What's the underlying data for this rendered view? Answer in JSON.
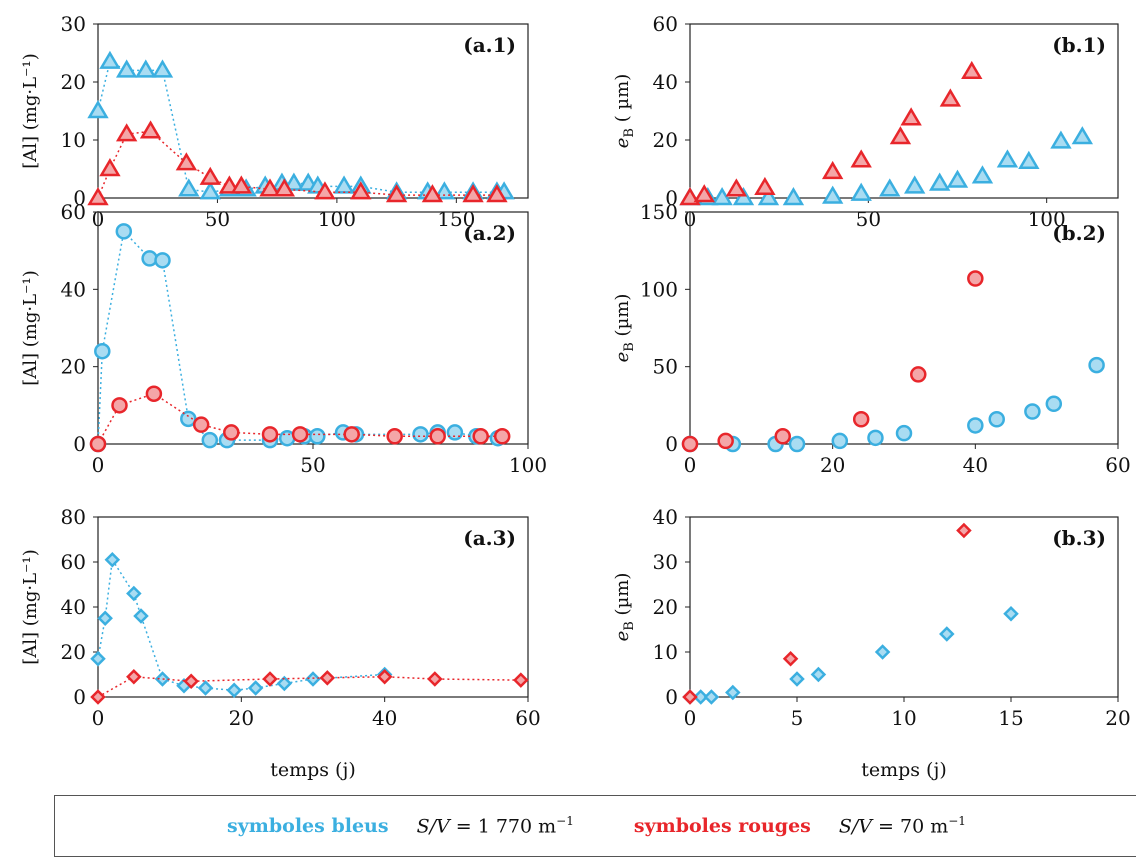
{
  "colors": {
    "blue": "#3bafe0",
    "blue_fill": "#a9dcf2",
    "red": "#e8262b",
    "red_fill": "#f4a6a8"
  },
  "xlabel": "temps (j)",
  "legend": {
    "blue_label": "symboles bleus",
    "blue_sv_prefix": "S/V",
    "blue_sv_value": "= 1 770 m",
    "blue_sv_exp": "−1",
    "red_label": "symboles rouges",
    "red_sv_prefix": "S/V",
    "red_sv_value": "= 70 m",
    "red_sv_exp": "−1"
  },
  "chart_data": [
    {
      "id": "a1",
      "type": "line",
      "marker": "triangle",
      "panel_label": "(a.1)",
      "ylabel": "[Al] (mg·L⁻¹)",
      "xlim": [
        0,
        180
      ],
      "ylim": [
        0,
        30
      ],
      "xticks": [
        0,
        50,
        100,
        150
      ],
      "yticks": [
        0,
        10,
        20,
        30
      ],
      "series": [
        {
          "color": "blue",
          "x": [
            0,
            5,
            12,
            20,
            27,
            38,
            47,
            55,
            62,
            70,
            77,
            82,
            88,
            92,
            103,
            110,
            125,
            138,
            145,
            157,
            167,
            170
          ],
          "y": [
            15,
            23.5,
            22,
            22,
            22,
            1.5,
            1,
            1.5,
            1.5,
            2,
            2.5,
            2.5,
            2.5,
            2,
            2,
            2,
            1,
            1,
            1,
            1,
            1,
            1
          ],
          "connected": true
        },
        {
          "color": "red",
          "x": [
            0,
            5,
            12,
            22,
            37,
            47,
            55,
            60,
            72,
            78,
            95,
            110,
            125,
            140,
            157,
            167
          ],
          "y": [
            0,
            5,
            11,
            11.5,
            6,
            3.5,
            2,
            2,
            1.5,
            1.5,
            1,
            1,
            0.5,
            0.5,
            0.5,
            0.5
          ],
          "connected": true
        }
      ]
    },
    {
      "id": "b1",
      "type": "scatter",
      "marker": "triangle",
      "panel_label": "(b.1)",
      "ylabel": "eB ( µm)",
      "xlim": [
        0,
        120
      ],
      "ylim": [
        0,
        60
      ],
      "xticks": [
        0,
        50,
        100
      ],
      "yticks": [
        0,
        20,
        40,
        60
      ],
      "series": [
        {
          "color": "blue",
          "x": [
            0,
            5,
            9,
            15,
            22,
            29,
            40,
            48,
            56,
            63,
            70,
            75,
            82,
            89,
            95,
            104,
            110
          ],
          "y": [
            0,
            0,
            0,
            0,
            0,
            0,
            0.5,
            1.5,
            3,
            4,
            5,
            6,
            7.5,
            13,
            12.5,
            19.5,
            21
          ]
        },
        {
          "color": "red",
          "x": [
            0,
            4,
            13,
            21,
            40,
            48,
            59,
            62,
            73,
            79
          ],
          "y": [
            0,
            1,
            3,
            3.5,
            9,
            13,
            21,
            27.5,
            34,
            43.5
          ]
        }
      ]
    },
    {
      "id": "a2",
      "type": "line",
      "marker": "circle",
      "panel_label": "(a.2)",
      "ylabel": "[Al] (mg·L⁻¹)",
      "xlim": [
        0,
        100
      ],
      "ylim": [
        0,
        60
      ],
      "xticks": [
        0,
        50,
        100
      ],
      "yticks": [
        0,
        20,
        40,
        60
      ],
      "series": [
        {
          "color": "blue",
          "x": [
            0,
            1,
            6,
            12,
            15,
            21,
            26,
            30,
            40,
            44,
            48,
            51,
            57,
            60,
            75,
            79,
            83,
            88,
            93
          ],
          "y": [
            0,
            24,
            55,
            48,
            47.5,
            6.5,
            1,
            1,
            1,
            1.5,
            2,
            2,
            3,
            2.5,
            2.5,
            3,
            3,
            2,
            1.5
          ],
          "connected": true
        },
        {
          "color": "red",
          "x": [
            0,
            5,
            13,
            24,
            31,
            40,
            47,
            59,
            69,
            79,
            89,
            94
          ],
          "y": [
            0,
            10,
            13,
            5,
            3,
            2.5,
            2.5,
            2.5,
            2,
            2,
            2,
            2
          ],
          "connected": true
        }
      ]
    },
    {
      "id": "b2",
      "type": "scatter",
      "marker": "circle",
      "panel_label": "(b.2)",
      "ylabel": "eB (µm)",
      "xlim": [
        0,
        60
      ],
      "ylim": [
        0,
        150
      ],
      "xticks": [
        0,
        20,
        40,
        60
      ],
      "yticks": [
        0,
        50,
        100,
        150
      ],
      "series": [
        {
          "color": "blue",
          "x": [
            0,
            6,
            12,
            15,
            21,
            26,
            30,
            40,
            43,
            48,
            51,
            57
          ],
          "y": [
            0,
            0,
            0,
            0,
            2,
            4,
            7,
            12,
            16,
            21,
            26,
            51
          ]
        },
        {
          "color": "red",
          "x": [
            0,
            5,
            13,
            24,
            32,
            40
          ],
          "y": [
            0,
            2,
            5,
            16,
            45,
            107
          ]
        }
      ]
    },
    {
      "id": "a3",
      "type": "line",
      "marker": "diamond",
      "panel_label": "(a.3)",
      "ylabel": "[Al] (mg·L⁻¹)",
      "xlim": [
        0,
        60
      ],
      "ylim": [
        0,
        80
      ],
      "xticks": [
        0,
        20,
        40,
        60
      ],
      "yticks": [
        0,
        20,
        40,
        60,
        80
      ],
      "series": [
        {
          "color": "blue",
          "x": [
            0,
            1,
            2,
            5,
            6,
            9,
            12,
            15,
            19,
            22,
            26,
            30,
            40
          ],
          "y": [
            17,
            35,
            61,
            46,
            36,
            8,
            5,
            4,
            3,
            4,
            6,
            8,
            10
          ],
          "connected": true
        },
        {
          "color": "red",
          "x": [
            0,
            5,
            13,
            24,
            32,
            40,
            47,
            59
          ],
          "y": [
            0,
            9,
            7,
            8,
            8.5,
            9,
            8,
            7.5
          ],
          "connected": true
        }
      ]
    },
    {
      "id": "b3",
      "type": "scatter",
      "marker": "diamond",
      "panel_label": "(b.3)",
      "ylabel": "eB (µm)",
      "xlim": [
        0,
        20
      ],
      "ylim": [
        0,
        40
      ],
      "xticks": [
        0,
        5,
        10,
        15,
        20
      ],
      "yticks": [
        0,
        10,
        20,
        30,
        40
      ],
      "series": [
        {
          "color": "blue",
          "x": [
            0,
            0.5,
            1,
            2,
            5,
            6,
            9,
            12,
            15
          ],
          "y": [
            0,
            0,
            0,
            1,
            4,
            5,
            10,
            14,
            18.5
          ]
        },
        {
          "color": "red",
          "x": [
            0,
            4.7,
            12.8
          ],
          "y": [
            0,
            8.5,
            37
          ]
        }
      ]
    }
  ]
}
